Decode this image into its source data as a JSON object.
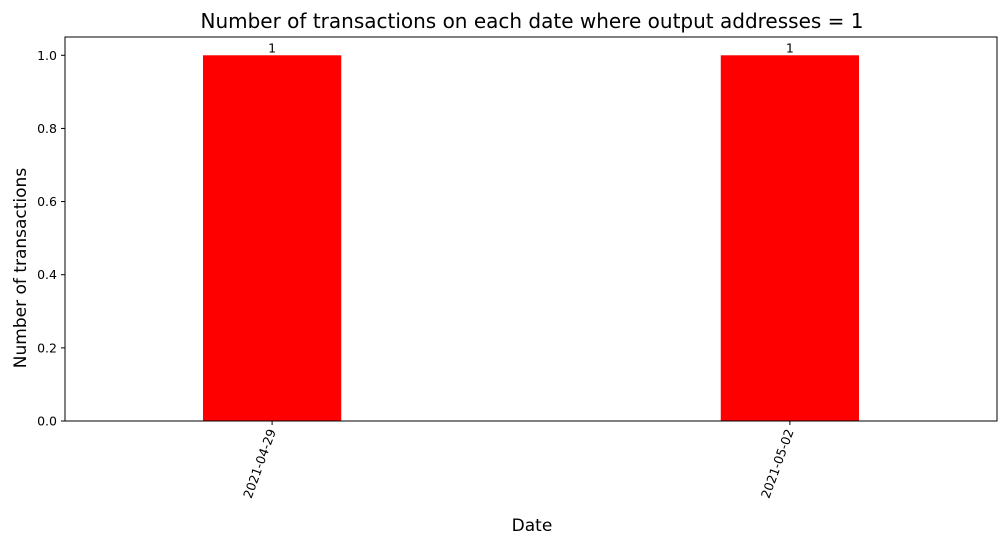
{
  "chart_data": {
    "type": "bar",
    "title": "Number of transactions on each date where output addresses = 1",
    "xlabel": "Date",
    "ylabel": "Number of transactions",
    "categories": [
      "2021-04-29",
      "2021-05-02"
    ],
    "values": [
      1,
      1
    ],
    "data_labels": [
      "1",
      "1"
    ],
    "ylim": [
      0,
      1.05
    ],
    "yticks": [
      0.0,
      0.2,
      0.4,
      0.6,
      0.8,
      1.0
    ],
    "ytick_labels": [
      "0.0",
      "0.2",
      "0.4",
      "0.6",
      "0.8",
      "1.0"
    ],
    "xtick_rotation_deg": 70,
    "grid": false,
    "legend": "none",
    "bar_color": "#ff0000"
  }
}
